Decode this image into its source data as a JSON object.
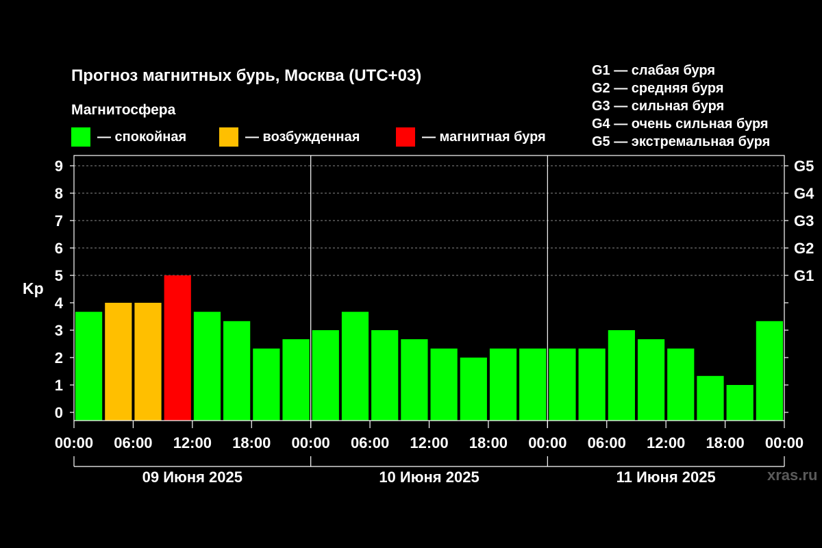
{
  "title": "Прогноз магнитных бурь, Москва (UTC+03)",
  "subtitle": "Магнитосфера",
  "legend": [
    {
      "label": "— спокойная",
      "color": "#00ff00"
    },
    {
      "label": "— возбужденная",
      "color": "#ffbf00"
    },
    {
      "label": "— магнитная буря",
      "color": "#ff0000"
    }
  ],
  "g_scale": [
    "G1 — слабая буря",
    "G2 — средняя буря",
    "G3 — сильная буря",
    "G4 — очень сильная буря",
    "G5 — экстремальная буря"
  ],
  "watermark": "xras.ru",
  "chart_data": {
    "type": "bar",
    "ylabel": "Kp",
    "ylim": [
      0,
      9
    ],
    "y_ticks": [
      "0",
      "1",
      "2",
      "3",
      "4",
      "5",
      "6",
      "7",
      "8",
      "9"
    ],
    "right_axis_labels": [
      {
        "kp": 5,
        "label": "G1"
      },
      {
        "kp": 6,
        "label": "G2"
      },
      {
        "kp": 7,
        "label": "G3"
      },
      {
        "kp": 8,
        "label": "G4"
      },
      {
        "kp": 9,
        "label": "G5"
      }
    ],
    "x_tick_labels": [
      "00:00",
      "06:00",
      "12:00",
      "18:00",
      "00:00",
      "06:00",
      "12:00",
      "18:00",
      "00:00",
      "06:00",
      "12:00",
      "18:00",
      "00:00"
    ],
    "days": [
      "09 Июня 2025",
      "10 Июня 2025",
      "11 Июня 2025"
    ],
    "values": [
      3.67,
      4.0,
      4.0,
      5.0,
      3.67,
      3.33,
      2.33,
      2.67,
      3.0,
      3.67,
      3.0,
      2.67,
      2.33,
      2.0,
      2.33,
      2.33,
      2.33,
      2.33,
      3.0,
      2.67,
      2.33,
      1.33,
      1.0,
      3.33
    ],
    "levels": [
      "calm",
      "active",
      "active",
      "storm",
      "calm",
      "calm",
      "calm",
      "calm",
      "calm",
      "calm",
      "calm",
      "calm",
      "calm",
      "calm",
      "calm",
      "calm",
      "calm",
      "calm",
      "calm",
      "calm",
      "calm",
      "calm",
      "calm",
      "calm"
    ],
    "colors": {
      "calm": "#00ff00",
      "active": "#ffbf00",
      "storm": "#ff0000"
    },
    "grid": "dashed horizontal at Kp 5–9"
  }
}
